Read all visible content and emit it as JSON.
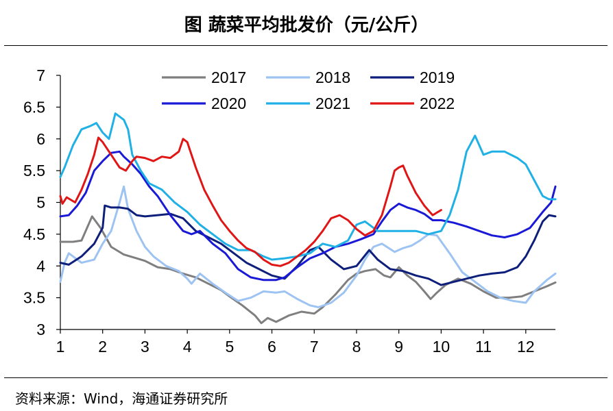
{
  "header": {
    "title": "图  蔬菜平均批发价（元/公斤）"
  },
  "footer": {
    "source": "资料来源：Wind，海通证券研究所"
  },
  "chart_data": {
    "type": "line",
    "title": "图  蔬菜平均批发价（元/公斤）",
    "xlabel": "",
    "ylabel": "",
    "xlim": [
      1,
      12.7
    ],
    "ylim": [
      3,
      7
    ],
    "x_ticks": [
      1,
      2,
      3,
      4,
      5,
      6,
      7,
      8,
      9,
      10,
      11,
      12
    ],
    "x_tick_labels": [
      "1",
      "2",
      "3",
      "4",
      "5",
      "6",
      "7",
      "8",
      "9",
      "10",
      "11",
      "12"
    ],
    "y_ticks": [
      3,
      3.5,
      4,
      4.5,
      5,
      5.5,
      6,
      6.5,
      7
    ],
    "y_tick_labels": [
      "3",
      "3.5",
      "4",
      "4.5",
      "5",
      "5.5",
      "6",
      "6.5",
      "7"
    ],
    "grid": false,
    "legend": "top",
    "series": [
      {
        "name": "2017",
        "color": "#7f7f7f",
        "x": [
          1.0,
          1.3,
          1.5,
          1.75,
          1.95,
          2.2,
          2.5,
          2.8,
          3.0,
          3.3,
          3.6,
          3.9,
          4.2,
          4.5,
          4.8,
          5.0,
          5.3,
          5.6,
          5.75,
          5.9,
          6.1,
          6.4,
          6.7,
          7.0,
          7.2,
          7.5,
          7.8,
          8.0,
          8.2,
          8.45,
          8.65,
          8.8,
          9.0,
          9.2,
          9.4,
          9.6,
          9.75,
          9.9,
          10.1,
          10.4,
          10.7,
          11.0,
          11.3,
          11.6,
          11.9,
          12.2,
          12.5,
          12.7
        ],
        "y": [
          4.38,
          4.38,
          4.4,
          4.78,
          4.6,
          4.3,
          4.18,
          4.12,
          4.08,
          3.98,
          3.95,
          3.88,
          3.82,
          3.72,
          3.62,
          3.52,
          3.38,
          3.22,
          3.1,
          3.18,
          3.12,
          3.22,
          3.28,
          3.25,
          3.35,
          3.55,
          3.78,
          3.88,
          3.92,
          3.95,
          3.85,
          3.82,
          3.98,
          3.85,
          3.75,
          3.6,
          3.48,
          3.58,
          3.7,
          3.8,
          3.72,
          3.6,
          3.5,
          3.5,
          3.52,
          3.6,
          3.68,
          3.74
        ]
      },
      {
        "name": "2018",
        "color": "#9dc3f2",
        "x": [
          1.0,
          1.1,
          1.2,
          1.5,
          1.8,
          2.0,
          2.2,
          2.4,
          2.5,
          2.6,
          2.8,
          3.0,
          3.2,
          3.5,
          3.8,
          4.0,
          4.1,
          4.3,
          4.6,
          4.9,
          5.2,
          5.5,
          5.8,
          6.1,
          6.3,
          6.6,
          6.9,
          7.1,
          7.4,
          7.7,
          8.0,
          8.2,
          8.4,
          8.6,
          8.9,
          9.1,
          9.3,
          9.5,
          9.7,
          9.9,
          10.2,
          10.5,
          10.8,
          11.1,
          11.4,
          11.7,
          12.0,
          12.2,
          12.5,
          12.7
        ],
        "y": [
          3.75,
          4.05,
          4.2,
          4.05,
          4.1,
          4.35,
          4.55,
          5.0,
          5.25,
          4.9,
          4.55,
          4.3,
          4.15,
          4.0,
          3.92,
          3.8,
          3.72,
          3.88,
          3.72,
          3.58,
          3.45,
          3.5,
          3.6,
          3.58,
          3.6,
          3.48,
          3.38,
          3.35,
          3.42,
          3.58,
          3.85,
          4.1,
          4.3,
          4.35,
          4.22,
          4.28,
          4.32,
          4.4,
          4.5,
          4.48,
          4.2,
          3.9,
          3.75,
          3.6,
          3.5,
          3.45,
          3.42,
          3.6,
          3.78,
          3.88
        ]
      },
      {
        "name": "2019",
        "color": "#0d1f7a",
        "x": [
          1.0,
          1.2,
          1.5,
          1.8,
          2.0,
          2.05,
          2.2,
          2.4,
          2.6,
          2.8,
          3.0,
          3.3,
          3.6,
          3.9,
          4.2,
          4.5,
          4.8,
          5.1,
          5.4,
          5.7,
          6.0,
          6.3,
          6.6,
          6.9,
          7.1,
          7.4,
          7.7,
          8.0,
          8.3,
          8.5,
          8.8,
          9.1,
          9.4,
          9.7,
          10.0,
          10.3,
          10.6,
          10.9,
          11.2,
          11.5,
          11.8,
          12.0,
          12.2,
          12.4,
          12.55,
          12.7
        ],
        "y": [
          4.05,
          4.02,
          4.15,
          4.35,
          4.6,
          4.95,
          4.92,
          4.92,
          4.9,
          4.8,
          4.78,
          4.8,
          4.82,
          4.75,
          4.55,
          4.45,
          4.35,
          4.2,
          4.05,
          3.95,
          3.85,
          3.8,
          4.0,
          4.25,
          4.3,
          4.1,
          3.95,
          4.0,
          4.25,
          4.1,
          3.95,
          3.92,
          3.85,
          3.8,
          3.7,
          3.75,
          3.8,
          3.85,
          3.88,
          3.9,
          3.98,
          4.15,
          4.4,
          4.7,
          4.8,
          4.78
        ]
      },
      {
        "name": "2020",
        "color": "#1a1ad6",
        "x": [
          1.0,
          1.2,
          1.4,
          1.6,
          1.8,
          2.0,
          2.2,
          2.4,
          2.5,
          2.7,
          2.9,
          3.1,
          3.3,
          3.6,
          3.9,
          4.1,
          4.3,
          4.6,
          4.9,
          5.2,
          5.5,
          5.8,
          6.1,
          6.3,
          6.6,
          6.9,
          7.2,
          7.5,
          7.8,
          8.1,
          8.4,
          8.6,
          8.8,
          9.0,
          9.2,
          9.4,
          9.6,
          9.8,
          10.0,
          10.3,
          10.6,
          10.9,
          11.2,
          11.5,
          11.8,
          12.1,
          12.4,
          12.6,
          12.7
        ],
        "y": [
          4.78,
          4.8,
          4.95,
          5.15,
          5.5,
          5.65,
          5.78,
          5.8,
          5.72,
          5.6,
          5.45,
          5.25,
          5.1,
          4.8,
          4.55,
          4.5,
          4.55,
          4.35,
          4.2,
          3.95,
          3.82,
          3.78,
          3.78,
          3.82,
          3.98,
          4.12,
          4.2,
          4.3,
          4.35,
          4.42,
          4.5,
          4.7,
          4.88,
          4.98,
          4.92,
          4.88,
          4.82,
          4.72,
          4.72,
          4.68,
          4.62,
          4.55,
          4.48,
          4.45,
          4.5,
          4.6,
          4.85,
          5.0,
          5.25
        ]
      },
      {
        "name": "2021",
        "color": "#1fb0e6",
        "x": [
          1.0,
          1.1,
          1.3,
          1.5,
          1.7,
          1.85,
          2.0,
          2.15,
          2.3,
          2.5,
          2.6,
          2.7,
          2.9,
          3.1,
          3.4,
          3.7,
          4.0,
          4.3,
          4.6,
          4.9,
          5.2,
          5.5,
          5.8,
          6.0,
          6.3,
          6.6,
          6.9,
          7.2,
          7.5,
          7.8,
          8.0,
          8.2,
          8.5,
          8.8,
          9.1,
          9.4,
          9.7,
          10.0,
          10.2,
          10.4,
          10.6,
          10.8,
          11.0,
          11.2,
          11.5,
          11.8,
          12.0,
          12.2,
          12.4,
          12.55,
          12.7
        ],
        "y": [
          5.4,
          5.55,
          5.9,
          6.15,
          6.2,
          6.25,
          6.1,
          6.0,
          6.4,
          6.3,
          6.15,
          5.75,
          5.5,
          5.3,
          5.2,
          5.0,
          4.85,
          4.65,
          4.5,
          4.35,
          4.25,
          4.25,
          4.15,
          4.1,
          4.12,
          4.15,
          4.2,
          4.35,
          4.3,
          4.4,
          4.65,
          4.7,
          4.55,
          4.55,
          4.55,
          4.55,
          4.5,
          4.55,
          4.8,
          5.2,
          5.8,
          6.05,
          5.75,
          5.8,
          5.8,
          5.7,
          5.6,
          5.35,
          5.1,
          5.05,
          5.05
        ]
      },
      {
        "name": "2022",
        "color": "#e01515",
        "x": [
          1.0,
          1.05,
          1.15,
          1.35,
          1.5,
          1.65,
          1.8,
          1.9,
          2.0,
          2.2,
          2.4,
          2.55,
          2.7,
          2.8,
          3.0,
          3.2,
          3.4,
          3.6,
          3.8,
          3.9,
          4.0,
          4.2,
          4.4,
          4.6,
          4.8,
          5.0,
          5.2,
          5.4,
          5.6,
          5.8,
          6.0,
          6.2,
          6.4,
          6.6,
          6.8,
          7.0,
          7.2,
          7.4,
          7.6,
          7.8,
          8.0,
          8.2,
          8.4,
          8.6,
          8.8,
          8.9,
          9.0,
          9.1,
          9.2,
          9.4,
          9.6,
          9.8,
          10.0
        ],
        "y": [
          5.1,
          4.98,
          5.08,
          5.0,
          5.2,
          5.45,
          5.75,
          6.02,
          5.95,
          5.75,
          5.55,
          5.5,
          5.65,
          5.72,
          5.7,
          5.65,
          5.72,
          5.7,
          5.8,
          6.0,
          5.95,
          5.55,
          5.2,
          4.95,
          4.72,
          4.55,
          4.4,
          4.28,
          4.22,
          4.1,
          4.02,
          4.0,
          4.05,
          4.15,
          4.25,
          4.38,
          4.55,
          4.75,
          4.8,
          4.72,
          4.58,
          4.48,
          4.55,
          4.8,
          5.25,
          5.5,
          5.55,
          5.58,
          5.42,
          5.15,
          4.95,
          4.8,
          4.88
        ]
      }
    ]
  }
}
